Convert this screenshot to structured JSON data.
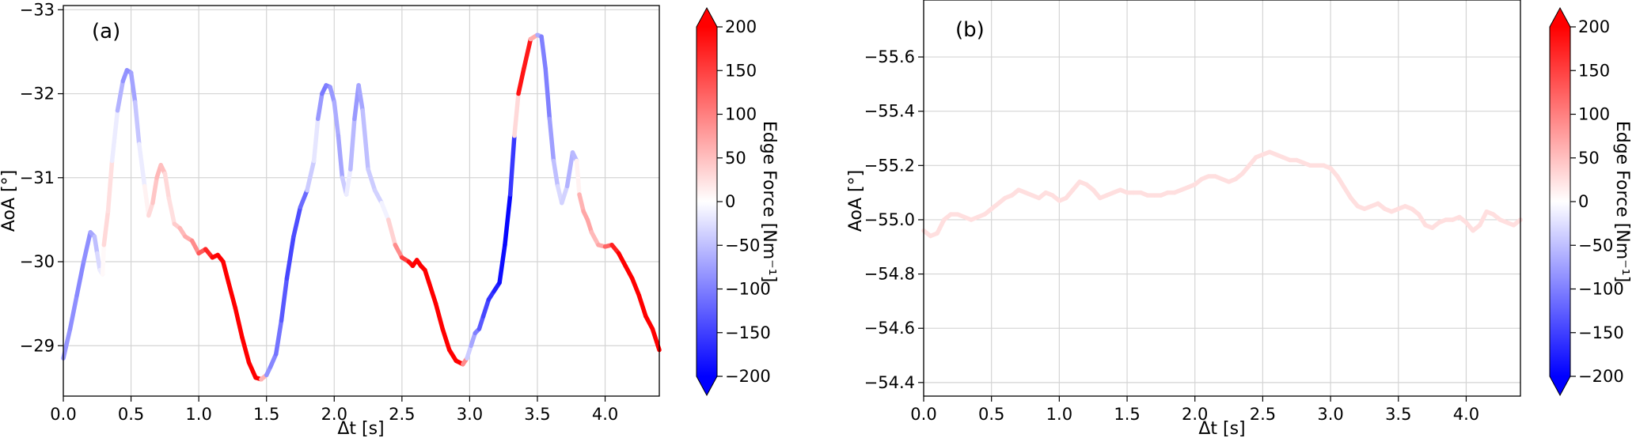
{
  "chart_data": [
    {
      "type": "line",
      "panel_label": "(a)",
      "xlabel": "Δt [s]",
      "ylabel": "AoA [°]",
      "xlim": [
        0.0,
        4.4
      ],
      "ylim": [
        -28.4,
        -33.05
      ],
      "y_axis_inverted": true,
      "grid": true,
      "x_ticks": [
        "0.0",
        "0.5",
        "1.0",
        "1.5",
        "2.0",
        "2.5",
        "3.0",
        "3.5",
        "4.0"
      ],
      "y_ticks": [
        "−29",
        "−30",
        "−31",
        "−32",
        "−33"
      ],
      "colormap": "bwr",
      "colorbar": {
        "label": "Edge Force [Nm⁻¹]",
        "range": [
          -200,
          200
        ],
        "extend": "both",
        "ticks": [
          "−200",
          "−150",
          "−100",
          "−50",
          "0",
          "50",
          "100",
          "150",
          "200"
        ]
      },
      "series": [
        {
          "x": [
            0.0,
            0.05,
            0.1,
            0.15,
            0.2,
            0.23,
            0.25,
            0.27,
            0.29,
            0.3,
            0.33,
            0.36,
            0.4,
            0.44,
            0.47,
            0.5,
            0.53,
            0.56,
            0.6,
            0.63,
            0.66,
            0.69,
            0.72,
            0.75,
            0.78,
            0.82,
            0.86,
            0.9,
            0.95,
            1.0,
            1.05,
            1.1,
            1.14,
            1.18,
            1.22,
            1.27,
            1.32,
            1.37,
            1.42,
            1.46,
            1.5,
            1.53,
            1.57,
            1.61,
            1.65,
            1.7,
            1.75,
            1.8,
            1.85,
            1.88,
            1.91,
            1.94,
            1.97,
            2.0,
            2.03,
            2.06,
            2.09,
            2.12,
            2.15,
            2.18,
            2.21,
            2.25,
            2.3,
            2.35,
            2.4,
            2.45,
            2.5,
            2.55,
            2.58,
            2.61,
            2.64,
            2.67,
            2.7,
            2.75,
            2.8,
            2.85,
            2.9,
            2.95,
            2.98,
            3.01,
            3.04,
            3.07,
            3.1,
            3.14,
            3.18,
            3.22,
            3.26,
            3.3,
            3.33,
            3.36,
            3.4,
            3.45,
            3.5,
            3.53,
            3.56,
            3.59,
            3.62,
            3.65,
            3.68,
            3.72,
            3.76,
            3.79,
            3.81,
            3.84,
            3.87,
            3.9,
            3.95,
            4.0,
            4.05,
            4.1,
            4.15,
            4.2,
            4.25,
            4.3,
            4.35,
            4.4
          ],
          "y": [
            -28.85,
            -29.2,
            -29.6,
            -30.0,
            -30.35,
            -30.3,
            -30.1,
            -29.9,
            -29.85,
            -30.2,
            -30.6,
            -31.2,
            -31.8,
            -32.15,
            -32.28,
            -32.25,
            -31.9,
            -31.4,
            -30.9,
            -30.55,
            -30.7,
            -31.0,
            -31.15,
            -31.05,
            -30.75,
            -30.45,
            -30.4,
            -30.3,
            -30.25,
            -30.1,
            -30.15,
            -30.05,
            -30.08,
            -30.0,
            -29.75,
            -29.45,
            -29.1,
            -28.8,
            -28.62,
            -28.6,
            -28.65,
            -28.75,
            -28.9,
            -29.3,
            -29.8,
            -30.3,
            -30.65,
            -30.85,
            -31.2,
            -31.7,
            -32.0,
            -32.1,
            -32.08,
            -31.9,
            -31.5,
            -31.0,
            -30.8,
            -31.1,
            -31.7,
            -32.1,
            -31.8,
            -31.1,
            -30.85,
            -30.7,
            -30.5,
            -30.2,
            -30.05,
            -30.0,
            -29.95,
            -30.02,
            -29.95,
            -29.9,
            -29.75,
            -29.5,
            -29.2,
            -28.95,
            -28.82,
            -28.78,
            -28.85,
            -29.0,
            -29.15,
            -29.2,
            -29.35,
            -29.55,
            -29.65,
            -29.75,
            -30.2,
            -30.8,
            -31.5,
            -32.0,
            -32.3,
            -32.65,
            -32.7,
            -32.68,
            -32.3,
            -31.7,
            -31.2,
            -30.9,
            -30.7,
            -30.9,
            -31.3,
            -31.2,
            -30.8,
            -30.6,
            -30.5,
            -30.35,
            -30.2,
            -30.18,
            -30.2,
            -30.1,
            -29.95,
            -29.8,
            -29.6,
            -29.35,
            -29.2,
            -28.95
          ],
          "edge_force": [
            -80,
            -85,
            -90,
            -95,
            -80,
            -60,
            -40,
            -20,
            -10,
            20,
            40,
            10,
            -40,
            -80,
            -90,
            -85,
            -60,
            -30,
            0,
            20,
            40,
            50,
            60,
            40,
            20,
            30,
            50,
            60,
            70,
            110,
            150,
            190,
            200,
            200,
            200,
            200,
            200,
            200,
            200,
            200,
            -80,
            -90,
            -100,
            -120,
            -140,
            -150,
            -130,
            -100,
            20,
            -60,
            -100,
            -110,
            -90,
            -70,
            -60,
            -80,
            0,
            -30,
            -80,
            -80,
            -60,
            -40,
            -40,
            -30,
            10,
            60,
            120,
            180,
            200,
            200,
            200,
            200,
            200,
            200,
            200,
            200,
            200,
            200,
            -20,
            -60,
            -80,
            -120,
            -140,
            -150,
            -170,
            -180,
            -200,
            -190,
            -120,
            180,
            190,
            170,
            -40,
            -90,
            -110,
            -90,
            -60,
            -40,
            -20,
            -50,
            -70,
            -40,
            60,
            60,
            80,
            60,
            50,
            90,
            150,
            200,
            200,
            200,
            200,
            200,
            200,
            200
          ]
        }
      ]
    },
    {
      "type": "line",
      "panel_label": "(b)",
      "xlabel": "Δt [s]",
      "ylabel": "AoA [°]",
      "xlim": [
        0.0,
        4.4
      ],
      "ylim": [
        -54.35,
        -55.81
      ],
      "y_axis_inverted": true,
      "grid": true,
      "x_ticks": [
        "0.0",
        "0.5",
        "1.0",
        "1.5",
        "2.0",
        "2.5",
        "3.0",
        "3.5",
        "4.0"
      ],
      "y_ticks": [
        "−54.4",
        "−54.6",
        "−54.8",
        "−55.0",
        "−55.2",
        "−55.4",
        "−55.6"
      ],
      "colormap": "bwr",
      "colorbar": {
        "label": "Edge Force [Nm⁻¹]",
        "range": [
          -200,
          200
        ],
        "extend": "both",
        "ticks": [
          "−200",
          "−150",
          "−100",
          "−50",
          "0",
          "50",
          "100",
          "150",
          "200"
        ]
      },
      "series": [
        {
          "x": [
            0.0,
            0.05,
            0.1,
            0.15,
            0.2,
            0.25,
            0.3,
            0.35,
            0.4,
            0.45,
            0.5,
            0.55,
            0.6,
            0.65,
            0.7,
            0.75,
            0.8,
            0.85,
            0.9,
            0.95,
            1.0,
            1.05,
            1.1,
            1.15,
            1.2,
            1.25,
            1.3,
            1.35,
            1.4,
            1.45,
            1.5,
            1.55,
            1.6,
            1.65,
            1.7,
            1.75,
            1.8,
            1.85,
            1.9,
            1.95,
            2.0,
            2.05,
            2.1,
            2.15,
            2.2,
            2.25,
            2.3,
            2.35,
            2.4,
            2.45,
            2.5,
            2.55,
            2.6,
            2.65,
            2.7,
            2.75,
            2.8,
            2.85,
            2.9,
            2.95,
            3.0,
            3.05,
            3.1,
            3.15,
            3.2,
            3.25,
            3.3,
            3.35,
            3.4,
            3.45,
            3.5,
            3.55,
            3.6,
            3.65,
            3.7,
            3.75,
            3.8,
            3.85,
            3.9,
            3.95,
            4.0,
            4.05,
            4.1,
            4.15,
            4.2,
            4.25,
            4.3,
            4.35,
            4.4
          ],
          "y": [
            -54.96,
            -54.94,
            -54.95,
            -55.0,
            -55.02,
            -55.02,
            -55.01,
            -55.0,
            -55.01,
            -55.02,
            -55.04,
            -55.06,
            -55.08,
            -55.09,
            -55.11,
            -55.1,
            -55.09,
            -55.08,
            -55.1,
            -55.09,
            -55.07,
            -55.08,
            -55.11,
            -55.14,
            -55.13,
            -55.11,
            -55.08,
            -55.09,
            -55.1,
            -55.11,
            -55.1,
            -55.1,
            -55.1,
            -55.09,
            -55.09,
            -55.09,
            -55.1,
            -55.1,
            -55.11,
            -55.12,
            -55.13,
            -55.15,
            -55.16,
            -55.16,
            -55.15,
            -55.14,
            -55.15,
            -55.17,
            -55.2,
            -55.23,
            -55.24,
            -55.25,
            -55.24,
            -55.23,
            -55.22,
            -55.22,
            -55.21,
            -55.2,
            -55.2,
            -55.2,
            -55.19,
            -55.16,
            -55.12,
            -55.08,
            -55.05,
            -55.04,
            -55.05,
            -55.06,
            -55.04,
            -55.03,
            -55.04,
            -55.05,
            -55.04,
            -55.02,
            -54.98,
            -54.97,
            -54.99,
            -55.0,
            -55.0,
            -55.01,
            -54.99,
            -54.96,
            -54.98,
            -55.03,
            -55.02,
            -55.0,
            -54.99,
            -54.98,
            -55.0
          ],
          "edge_force": [
            25,
            25,
            25,
            25,
            25,
            25,
            25,
            25,
            25,
            25,
            25,
            25,
            25,
            25,
            25,
            25,
            25,
            25,
            25,
            25,
            25,
            25,
            25,
            25,
            25,
            25,
            25,
            25,
            25,
            25,
            25,
            25,
            25,
            25,
            25,
            25,
            25,
            25,
            25,
            25,
            25,
            25,
            25,
            25,
            25,
            25,
            25,
            25,
            25,
            25,
            25,
            25,
            25,
            25,
            25,
            25,
            25,
            25,
            25,
            25,
            25,
            25,
            25,
            25,
            25,
            25,
            25,
            25,
            25,
            25,
            25,
            25,
            25,
            25,
            25,
            25,
            25,
            25,
            25,
            25,
            25,
            25,
            25,
            25,
            25,
            25,
            25,
            25,
            25
          ]
        }
      ]
    }
  ]
}
